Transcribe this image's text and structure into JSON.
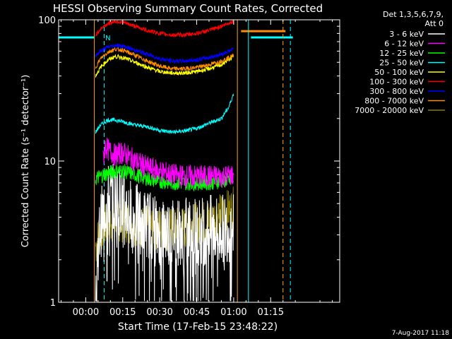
{
  "chart_data": {
    "type": "line",
    "title": "HESSI Observing Summary Count Rates, Corrected",
    "xlabel": "Start Time (17-Feb-15 23:48:22)",
    "ylabel": "Corrected Count Rate (s⁻¹ detector⁻¹)",
    "y_scale": "log",
    "ylim": [
      1,
      100
    ],
    "xlim_min": [
      -11,
      103
    ],
    "x_unit": "minutes after 00:00",
    "x_ticks": [
      {
        "x": 0,
        "label": "00:00"
      },
      {
        "x": 15,
        "label": "00:15"
      },
      {
        "x": 30,
        "label": "00:30"
      },
      {
        "x": 45,
        "label": "00:45"
      },
      {
        "x": 60,
        "label": "01:00"
      },
      {
        "x": 75,
        "label": "01:15"
      }
    ],
    "y_ticks": [
      {
        "y": 1,
        "label": "1"
      },
      {
        "y": 10,
        "label": "10"
      },
      {
        "y": 100,
        "label": "100"
      }
    ],
    "legend_header": [
      "Det 1,3,5,6,7,9,",
      "Att 0"
    ],
    "legend_placement": "right",
    "grid": false,
    "series": [
      {
        "name": "3 - 6 keV",
        "color": "#ffffff",
        "x": [
          4,
          6,
          9,
          12,
          15,
          20,
          25,
          30,
          35,
          40,
          45,
          50,
          55,
          60
        ],
        "y": [
          1.3,
          3.5,
          5.5,
          5.5,
          5,
          4,
          3.6,
          3.3,
          3.2,
          3.2,
          3.2,
          3.3,
          3.3,
          3.4
        ]
      },
      {
        "name": "6 - 12 keV",
        "color": "#ff00ff",
        "x": [
          7,
          8,
          9,
          12,
          15,
          20,
          25,
          30,
          35,
          40,
          45,
          50,
          55,
          60
        ],
        "y": [
          10,
          13,
          12,
          11,
          11.5,
          10,
          9,
          8.5,
          8,
          7.8,
          7.8,
          7.8,
          7.8,
          8
        ]
      },
      {
        "name": "12 - 25 keV",
        "color": "#00ff00",
        "x": [
          4,
          6,
          9,
          12,
          15,
          20,
          25,
          30,
          35,
          40,
          45,
          50,
          55,
          60
        ],
        "y": [
          7.5,
          7.8,
          8.2,
          8.5,
          8.5,
          8,
          7.5,
          7.2,
          7,
          7,
          7,
          7,
          7.2,
          7.4
        ]
      },
      {
        "name": "25 - 50 keV",
        "color": "#00ffff",
        "x": [
          4,
          6,
          9,
          12,
          15,
          20,
          25,
          30,
          35,
          40,
          45,
          50,
          55,
          58,
          60
        ],
        "y": [
          16,
          18,
          19.5,
          19.5,
          19,
          18,
          17.5,
          16.5,
          16,
          16.3,
          17,
          18.5,
          20,
          24,
          30
        ]
      },
      {
        "name": "50 - 100 keV",
        "color": "#ffff00",
        "x": [
          4,
          6,
          9,
          12,
          15,
          20,
          25,
          30,
          35,
          40,
          45,
          50,
          55,
          60
        ],
        "y": [
          40,
          46,
          52,
          55,
          54,
          50,
          46,
          43,
          42,
          42,
          43,
          45,
          48,
          55
        ]
      },
      {
        "name": "100 - 300 keV",
        "color": "#ff0000",
        "x": [
          4,
          6,
          9,
          12,
          15,
          20,
          25,
          30,
          35,
          40,
          45,
          50,
          55,
          60
        ],
        "y": [
          78,
          86,
          94,
          98,
          96,
          90,
          84,
          80,
          78,
          78,
          80,
          84,
          90,
          98
        ]
      },
      {
        "name": "300 - 800 keV",
        "color": "#0000ff",
        "x": [
          4,
          6,
          9,
          12,
          15,
          20,
          25,
          30,
          35,
          40,
          45,
          50,
          55,
          60
        ],
        "y": [
          56,
          60,
          64,
          66,
          65,
          61,
          57,
          53,
          51,
          51,
          52,
          54,
          57,
          62
        ]
      },
      {
        "name": "800 - 7000 keV",
        "color": "#ff8c00",
        "x": [
          4,
          6,
          9,
          12,
          15,
          20,
          25,
          30,
          35,
          40,
          45,
          50,
          55,
          60
        ],
        "y": [
          46,
          53,
          59,
          62,
          61,
          56,
          51,
          47,
          45,
          45,
          46,
          48,
          51,
          56
        ]
      },
      {
        "name": "7000 - 20000 keV",
        "color": "#8b7d00",
        "x": [
          4,
          6,
          9,
          12,
          15,
          20,
          25,
          30,
          35,
          40,
          45,
          50,
          55,
          60
        ],
        "y": [
          2.5,
          3.2,
          3.6,
          3.8,
          3.8,
          3.6,
          3.4,
          3.3,
          3.3,
          3.4,
          3.6,
          3.8,
          4.2,
          4.6
        ]
      }
    ],
    "annotations": [
      {
        "text": "N",
        "x": 9,
        "y": 75,
        "color": "#00ffff"
      }
    ],
    "vertical_markers": [
      {
        "x": 3.5,
        "color": "#ffa500",
        "style": "solid"
      },
      {
        "x": 7.5,
        "color": "#00ffff",
        "style": "dashed"
      },
      {
        "x": 61.5,
        "color": "#ffa500",
        "style": "solid"
      },
      {
        "x": 66,
        "color": "#00ffff",
        "style": "solid"
      },
      {
        "x": 80,
        "color": "#ffa500",
        "style": "dashed"
      },
      {
        "x": 83,
        "color": "#00ffff",
        "style": "dashed"
      }
    ],
    "flag_bars": [
      {
        "x0": -11,
        "x1": 3.5,
        "y": 75,
        "color": "#00ffff"
      },
      {
        "x0": 67,
        "x1": 84,
        "y": 75,
        "color": "#00ffff"
      },
      {
        "x0": 63,
        "x1": 81,
        "y": 83,
        "color": "#ff8c00"
      }
    ]
  },
  "footer_date": "7-Aug-2017 11:18"
}
